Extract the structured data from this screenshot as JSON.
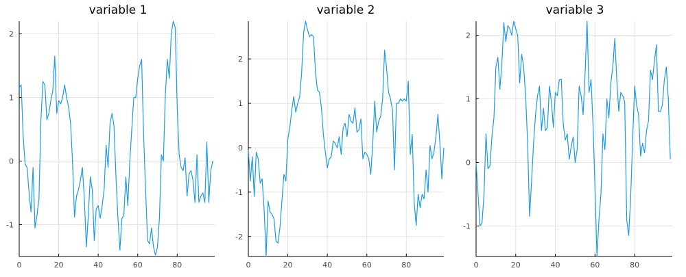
{
  "chart_data": [
    {
      "type": "line",
      "title": "variable 1",
      "xlabel": "",
      "ylabel": "",
      "xlim": [
        0,
        99
      ],
      "ylim": [
        -1.5,
        2.2
      ],
      "x_ticks": [
        0,
        20,
        40,
        60,
        80
      ],
      "y_ticks": [
        -1,
        0,
        1,
        2
      ],
      "grid": true,
      "legend": "none",
      "color": "#1a9be6",
      "series": [
        {
          "values": [
            1.15,
            1.2,
            0.4,
            -0.05,
            -0.1,
            -0.5,
            -0.8,
            -0.1,
            -1.05,
            -0.85,
            -0.6,
            0.65,
            1.25,
            1.2,
            0.65,
            0.75,
            0.95,
            1.1,
            1.65,
            0.75,
            0.95,
            0.9,
            1.0,
            1.2,
            1.0,
            0.85,
            0.6,
            0.0,
            -0.88,
            -0.55,
            -0.45,
            -0.3,
            -0.1,
            -0.6,
            -1.35,
            -0.85,
            -0.25,
            -0.45,
            -1.25,
            -0.75,
            -0.7,
            -0.9,
            -0.7,
            -0.45,
            0.25,
            -0.1,
            0.6,
            0.75,
            0.55,
            -0.25,
            -0.9,
            -1.4,
            -0.9,
            -0.85,
            -0.25,
            -0.7,
            0.0,
            0.5,
            1.0,
            1.0,
            1.3,
            1.5,
            1.6,
            0.4,
            -0.45,
            -1.25,
            -1.3,
            -1.05,
            -1.35,
            -1.48,
            -1.35,
            -0.9,
            0.1,
            0.0,
            1.05,
            1.6,
            1.3,
            2.0,
            2.2,
            2.1,
            0.85,
            0.1,
            -0.1,
            -0.15,
            0.05,
            -0.55,
            -0.2,
            -0.15,
            -0.3,
            -0.65,
            0.1,
            -0.65,
            -0.55,
            -0.5,
            -0.65,
            0.3,
            -0.65,
            -0.15,
            0.0
          ]
        }
      ]
    },
    {
      "type": "line",
      "title": "variable 2",
      "xlabel": "",
      "ylabel": "",
      "xlim": [
        0,
        99
      ],
      "ylim": [
        -2.45,
        2.85
      ],
      "x_ticks": [
        0,
        20,
        40,
        60,
        80
      ],
      "y_ticks": [
        -2,
        -1,
        0,
        1,
        2
      ],
      "grid": true,
      "legend": "none",
      "color": "#1a9be6",
      "series": [
        {
          "values": [
            -0.05,
            -0.75,
            -0.2,
            -1.1,
            -0.1,
            -0.25,
            -0.8,
            -0.7,
            -1.4,
            -2.45,
            -1.2,
            -1.45,
            -1.5,
            -1.6,
            -2.1,
            -2.15,
            -1.8,
            -1.2,
            -0.6,
            -0.75,
            0.2,
            0.45,
            0.85,
            1.15,
            0.8,
            1.0,
            1.15,
            1.7,
            2.6,
            2.85,
            2.65,
            2.5,
            2.55,
            2.5,
            1.7,
            1.3,
            1.25,
            0.9,
            0.3,
            -0.1,
            -0.45,
            -0.25,
            -0.2,
            0.15,
            0.1,
            0.0,
            0.25,
            -0.15,
            0.45,
            0.55,
            0.25,
            0.75,
            0.6,
            0.55,
            0.9,
            0.35,
            0.4,
            0.65,
            -0.25,
            -0.1,
            -0.15,
            -0.25,
            -0.6,
            0.1,
            1.05,
            0.35,
            0.6,
            0.7,
            1.1,
            2.2,
            1.8,
            1.25,
            1.1,
            0.85,
            -0.5,
            1.0,
            1.0,
            1.1,
            1.05,
            1.1,
            1.05,
            1.5,
            -0.15,
            0.3,
            -1.25,
            -1.75,
            -1.05,
            -1.35,
            -1.05,
            -1.15,
            -0.5,
            -1.0,
            0.05,
            -0.25,
            -0.1,
            0.25,
            0.75,
            0.1,
            -0.7,
            0.0
          ]
        }
      ]
    },
    {
      "type": "line",
      "title": "variable 3",
      "xlabel": "",
      "ylabel": "",
      "xlim": [
        0,
        99
      ],
      "ylim": [
        -1.48,
        2.22
      ],
      "x_ticks": [
        0,
        20,
        40,
        60,
        80
      ],
      "y_ticks": [
        -1,
        0,
        1,
        2
      ],
      "grid": true,
      "legend": "none",
      "color": "#1a9be6",
      "series": [
        {
          "values": [
            0.0,
            -0.5,
            -1.0,
            -0.95,
            -0.5,
            0.45,
            -0.1,
            -0.05,
            0.4,
            0.7,
            1.5,
            1.65,
            1.15,
            1.55,
            2.2,
            1.9,
            2.15,
            2.1,
            2.0,
            2.22,
            2.1,
            2.0,
            1.25,
            1.7,
            1.5,
            1.05,
            0.3,
            -0.85,
            -0.3,
            0.3,
            0.75,
            1.05,
            1.2,
            0.5,
            0.85,
            0.5,
            0.55,
            1.2,
            0.95,
            0.55,
            1.1,
            1.05,
            1.3,
            1.3,
            0.6,
            0.35,
            0.45,
            0.05,
            0.25,
            0.4,
            0.0,
            0.2,
            1.2,
            1.05,
            0.75,
            1.4,
            2.22,
            1.1,
            1.3,
            0.6,
            -0.4,
            -1.48,
            -0.9,
            -0.5,
            0.45,
            0.2,
            1.0,
            0.7,
            1.25,
            1.5,
            1.95,
            1.3,
            0.8,
            1.1,
            1.05,
            0.95,
            -0.9,
            -1.15,
            -0.55,
            0.35,
            1.2,
            0.9,
            0.75,
            0.1,
            0.3,
            0.15,
            0.5,
            0.65,
            1.45,
            1.3,
            1.6,
            1.85,
            0.8,
            0.8,
            0.9,
            1.3,
            1.5,
            1.0,
            0.05
          ]
        }
      ]
    }
  ]
}
